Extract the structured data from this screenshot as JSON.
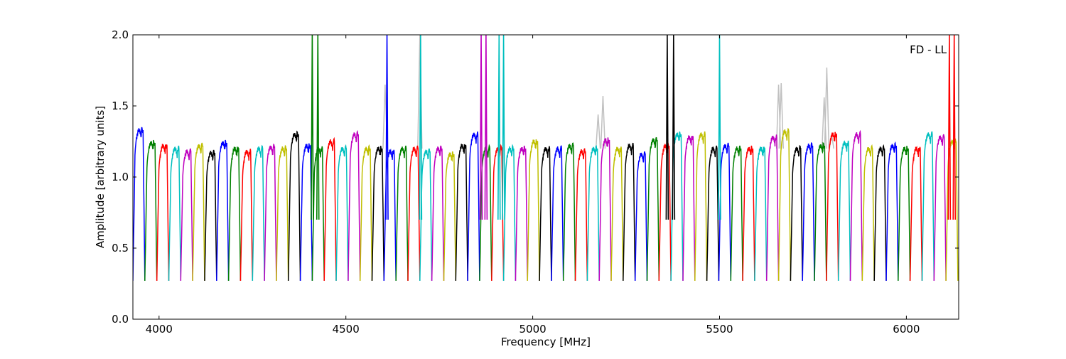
{
  "chart_data": {
    "type": "line",
    "title": "",
    "annotation": "FD - LL",
    "xlabel": "Frequency [MHz]",
    "ylabel": "Amplitude [arbitrary units]",
    "xlim": [
      3930,
      6140
    ],
    "ylim": [
      0.0,
      2.0
    ],
    "x_ticks": [
      4000,
      4500,
      5000,
      5500,
      6000
    ],
    "y_ticks": [
      0.0,
      0.5,
      1.0,
      1.5,
      2.0
    ],
    "x_tick_labels": [
      "4000",
      "4500",
      "5000",
      "5500",
      "6000"
    ],
    "y_tick_labels": [
      "0.0",
      "0.5",
      "1.0",
      "1.5",
      "2.0"
    ],
    "grid": false,
    "legend": "none",
    "background_series_color": "#c0c0c0",
    "color_cycle": [
      "#0000ff",
      "#008000",
      "#ff0000",
      "#00bfbf",
      "#bf00bf",
      "#bfbf00",
      "#000000"
    ],
    "band_width_mhz": 32,
    "band_starts_mhz": [
      3930,
      3962,
      3994,
      4026,
      4058,
      4090,
      4122,
      4154,
      4186,
      4218,
      4250,
      4282,
      4314,
      4346,
      4378,
      4410,
      4442,
      4474,
      4506,
      4538,
      4570,
      4602,
      4634,
      4666,
      4698,
      4730,
      4762,
      4794,
      4826,
      4858,
      4890,
      4922,
      4954,
      4986,
      5018,
      5050,
      5082,
      5114,
      5146,
      5178,
      5210,
      5242,
      5274,
      5306,
      5338,
      5370,
      5402,
      5434,
      5466,
      5498,
      5530,
      5562,
      5594,
      5626,
      5658,
      5690,
      5722,
      5754,
      5786,
      5818,
      5850,
      5882,
      5914,
      5946,
      5978,
      6010,
      6042,
      6074,
      6106
    ],
    "band_levels": [
      1.33,
      1.24,
      1.22,
      1.2,
      1.18,
      1.22,
      1.17,
      1.24,
      1.2,
      1.18,
      1.2,
      1.21,
      1.2,
      1.3,
      1.22,
      1.2,
      1.25,
      1.2,
      1.3,
      1.2,
      1.2,
      1.18,
      1.2,
      1.2,
      1.18,
      1.2,
      1.16,
      1.22,
      1.3,
      1.2,
      1.2,
      1.2,
      1.2,
      1.25,
      1.2,
      1.2,
      1.22,
      1.18,
      1.2,
      1.26,
      1.2,
      1.22,
      1.16,
      1.26,
      1.22,
      1.3,
      1.28,
      1.3,
      1.2,
      1.22,
      1.2,
      1.2,
      1.2,
      1.28,
      1.32,
      1.2,
      1.22,
      1.22,
      1.3,
      1.24,
      1.3,
      1.2,
      1.2,
      1.22,
      1.2,
      1.2,
      1.3,
      1.28,
      1.25
    ],
    "band_minimum": 0.27,
    "spikes": [
      {
        "x": 4410,
        "y": 2.0,
        "color": "#008000"
      },
      {
        "x": 4425,
        "y": 2.0,
        "color": "#008000"
      },
      {
        "x": 4610,
        "y": 2.0,
        "color": "#0000ff"
      },
      {
        "x": 4700,
        "y": 2.0,
        "color": "#00bfbf"
      },
      {
        "x": 4862,
        "y": 2.0,
        "color": "#bf00bf"
      },
      {
        "x": 4875,
        "y": 2.0,
        "color": "#bf00bf"
      },
      {
        "x": 4910,
        "y": 2.0,
        "color": "#00bfbf"
      },
      {
        "x": 4922,
        "y": 2.0,
        "color": "#00bfbf"
      },
      {
        "x": 5360,
        "y": 2.0,
        "color": "#000000"
      },
      {
        "x": 5377,
        "y": 2.0,
        "color": "#000000"
      },
      {
        "x": 5500,
        "y": 2.0,
        "color": "#00bfbf"
      },
      {
        "x": 6115,
        "y": 2.0,
        "color": "#ff0000"
      },
      {
        "x": 6128,
        "y": 2.0,
        "color": "#ff0000"
      }
    ],
    "grey_peaks": [
      {
        "x": 4605,
        "y": 1.65
      },
      {
        "x": 4698,
        "y": 2.0
      },
      {
        "x": 5188,
        "y": 1.57
      },
      {
        "x": 5175,
        "y": 1.44
      },
      {
        "x": 5658,
        "y": 1.65
      },
      {
        "x": 5665,
        "y": 1.66
      },
      {
        "x": 5780,
        "y": 1.56
      },
      {
        "x": 5787,
        "y": 1.77
      },
      {
        "x": 5800,
        "y": 1.3
      }
    ]
  }
}
